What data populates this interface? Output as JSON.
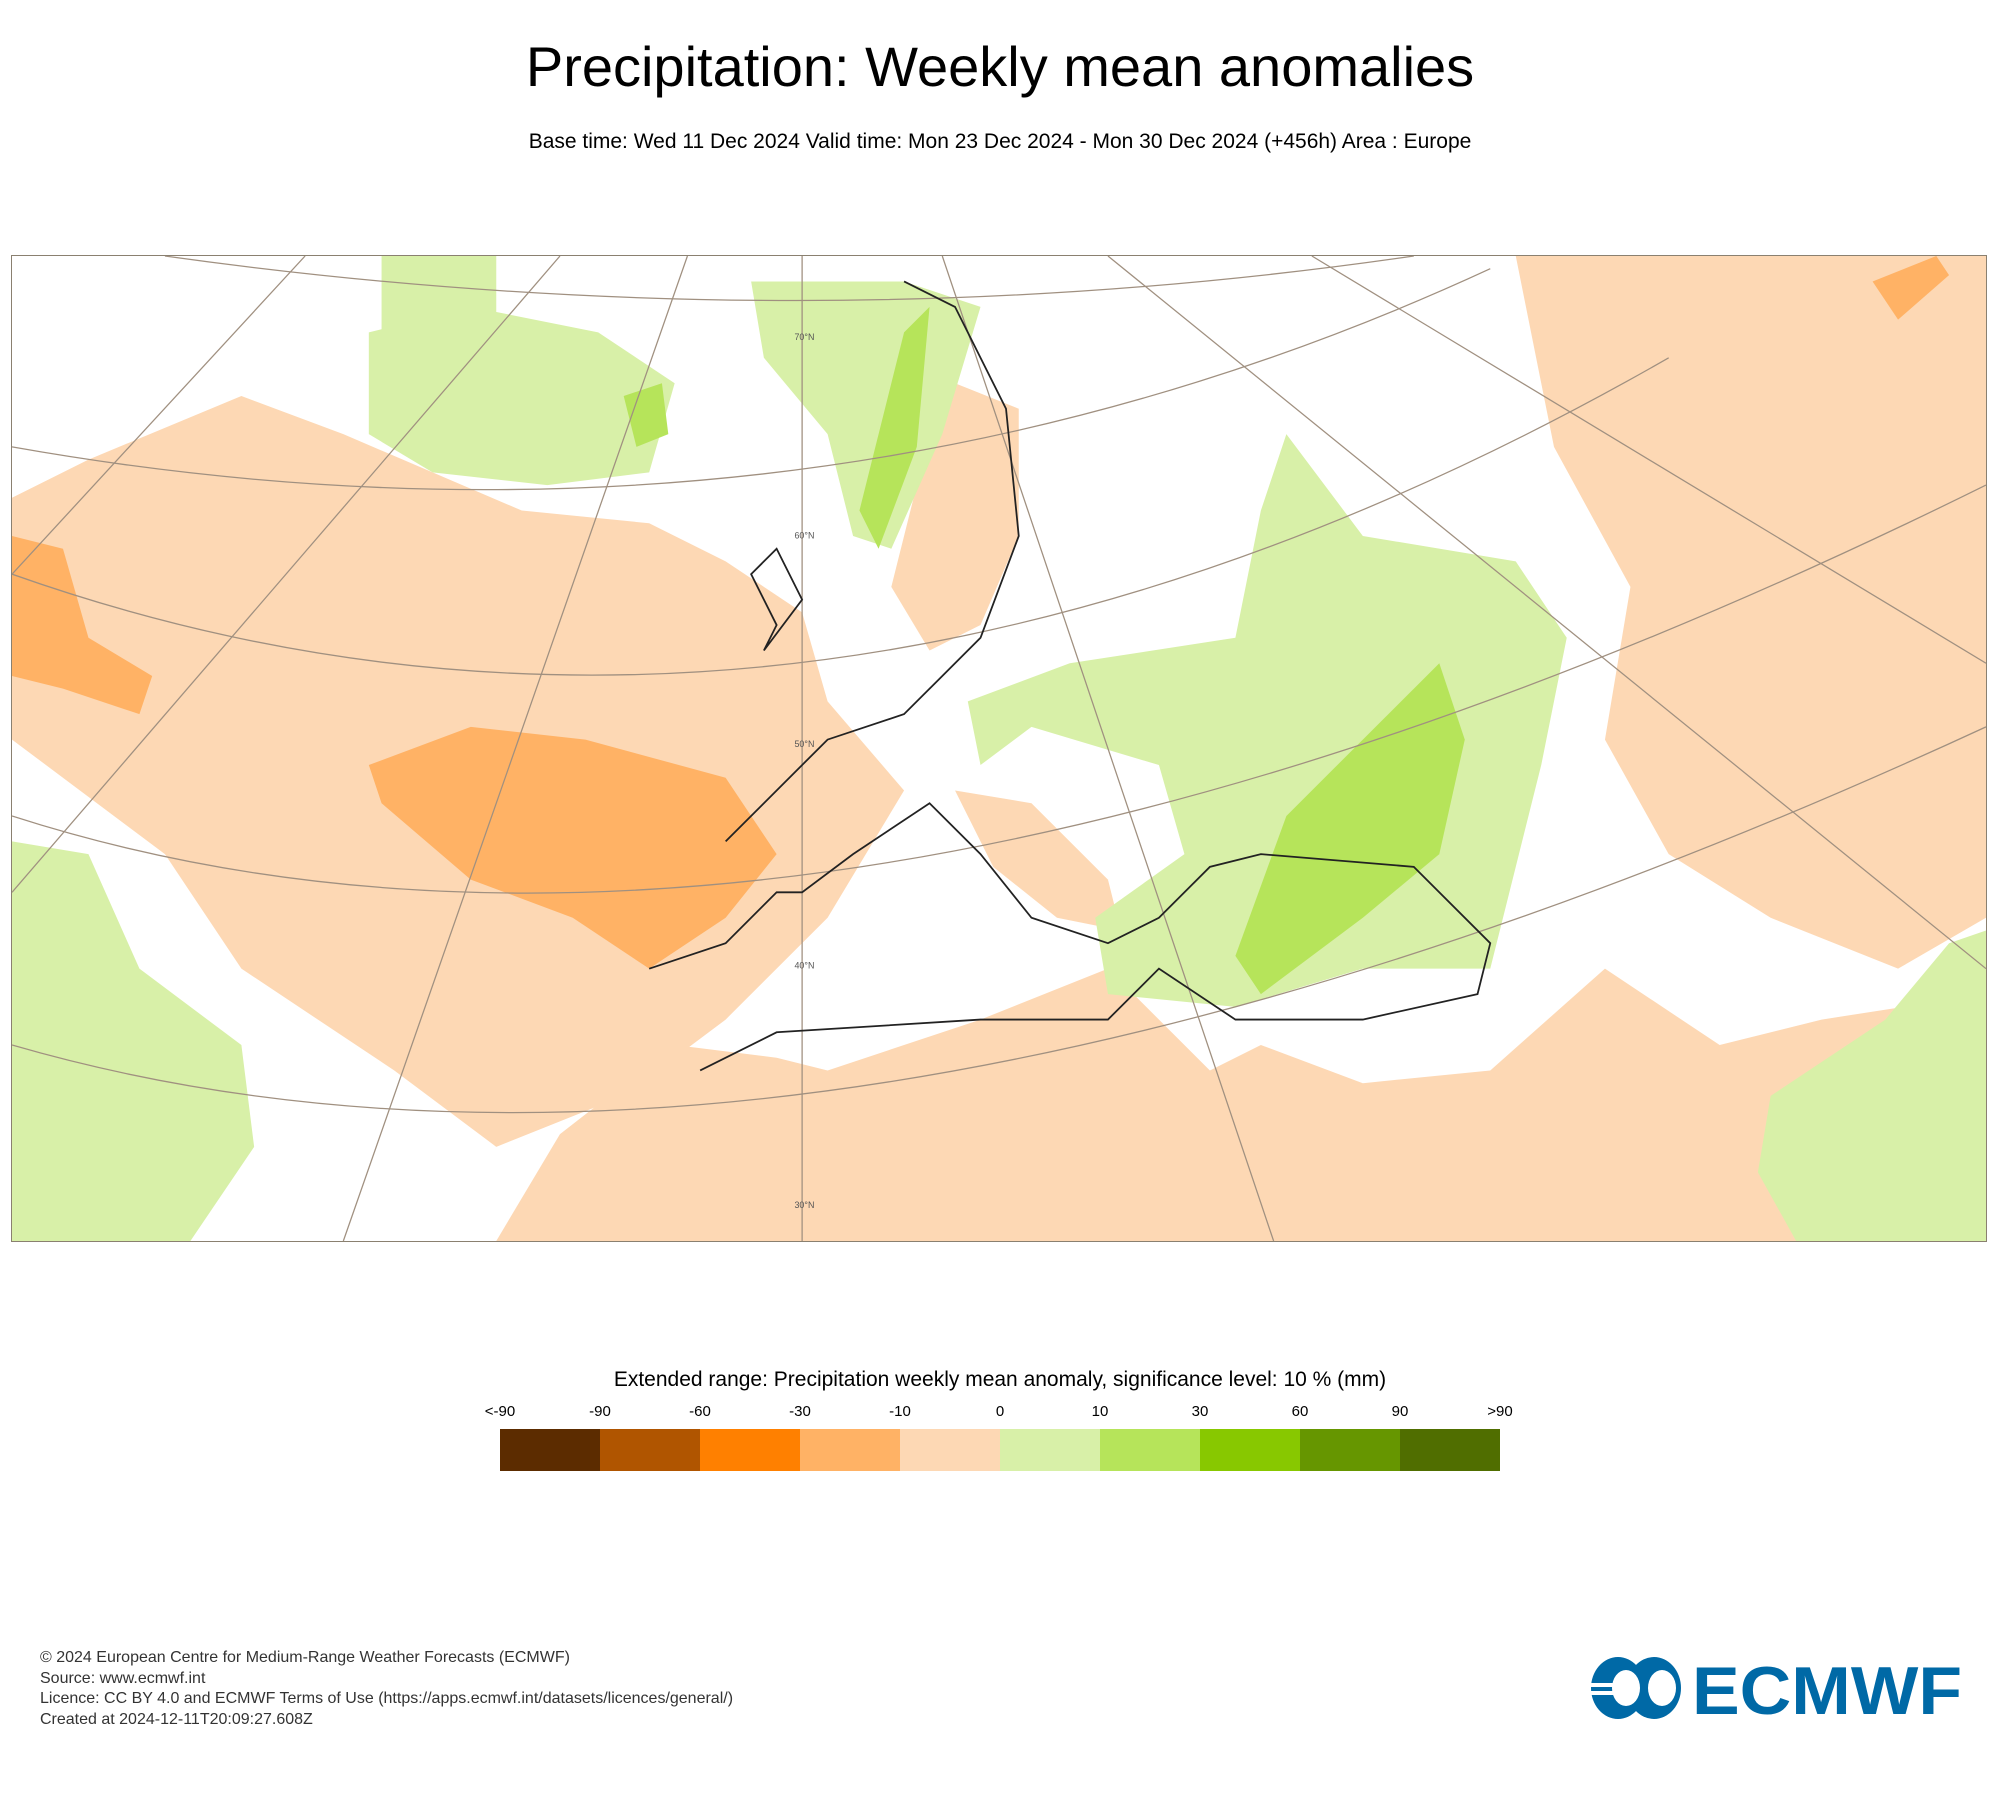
{
  "title": "Precipitation: Weekly mean anomalies",
  "subtitle": "Base time: Wed 11 Dec 2024 Valid time: Mon 23 Dec 2024 - Mon 30 Dec 2024 (+456h) Area : Europe",
  "map": {
    "area": "Europe",
    "latitude_labels": [
      "70°N",
      "60°N",
      "50°N",
      "40°N",
      "30°N"
    ]
  },
  "legend": {
    "title": "Extended range: Precipitation weekly mean anomaly, significance level: 10 % (mm)",
    "labels": [
      "<-90",
      "-90",
      "-60",
      "-30",
      "-10",
      "0",
      "10",
      "30",
      "60",
      "90",
      ">90"
    ],
    "colors": [
      "#5c2c00",
      "#b05500",
      "#ff8000",
      "#ffb265",
      "#fdd8b4",
      "#d8f0a8",
      "#b6e45a",
      "#88c800",
      "#669600",
      "#506e00"
    ]
  },
  "footer": {
    "copyright": "© 2024 European Centre for Medium-Range Weather Forecasts (ECMWF)",
    "source": "Source: www.ecmwf.int",
    "licence": "Licence: CC BY 4.0 and ECMWF Terms of Use (https://apps.ecmwf.int/datasets/licences/general/)",
    "created": "Created at 2024-12-11T20:09:27.608Z"
  },
  "logo": {
    "text": "ECMWF",
    "color": "#0069a6"
  }
}
